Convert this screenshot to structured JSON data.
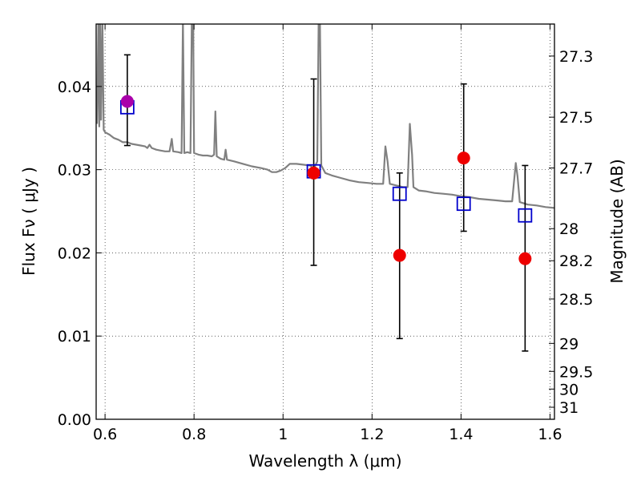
{
  "chart_data": {
    "type": "scatter",
    "title": "",
    "xlabel": "Wavelength  λ (μm)",
    "ylabel": "Flux  Fν  ( μJy )",
    "ylabel_right": "Magnitude (AB)",
    "xlim": [
      0.58,
      1.61
    ],
    "ylim": [
      0.0,
      0.0475
    ],
    "grid": true,
    "x_ticks": [
      {
        "value": 0.6,
        "label": "0.6"
      },
      {
        "value": 0.8,
        "label": "0.8"
      },
      {
        "value": 1.0,
        "label": "1"
      },
      {
        "value": 1.2,
        "label": "1.2"
      },
      {
        "value": 1.4,
        "label": "1.4"
      },
      {
        "value": 1.6,
        "label": "1.6"
      }
    ],
    "y_ticks": [
      {
        "value": 0.0,
        "label": "0.00"
      },
      {
        "value": 0.01,
        "label": "0.01"
      },
      {
        "value": 0.02,
        "label": "0.02"
      },
      {
        "value": 0.03,
        "label": "0.03"
      },
      {
        "value": 0.04,
        "label": "0.04"
      }
    ],
    "right_ticks": [
      {
        "value": 27.3,
        "label": "27.3"
      },
      {
        "value": 27.5,
        "label": "27.5"
      },
      {
        "value": 27.7,
        "label": "27.7"
      },
      {
        "value": 28.0,
        "label": "28"
      },
      {
        "value": 28.2,
        "label": "28.2"
      },
      {
        "value": 28.5,
        "label": "28.5"
      },
      {
        "value": 29.0,
        "label": "29"
      },
      {
        "value": 29.5,
        "label": "29.5"
      },
      {
        "value": 30.0,
        "label": "30"
      },
      {
        "value": 31.0,
        "label": "31"
      }
    ],
    "model_spectrum": {
      "color": "#808080",
      "points": [
        [
          0.582,
          0.0355
        ],
        [
          0.585,
          0.048
        ],
        [
          0.587,
          0.0352
        ],
        [
          0.589,
          0.048
        ],
        [
          0.591,
          0.036
        ],
        [
          0.594,
          0.048
        ],
        [
          0.597,
          0.0348
        ],
        [
          0.6,
          0.0345
        ],
        [
          0.61,
          0.0342
        ],
        [
          0.62,
          0.0338
        ],
        [
          0.63,
          0.0336
        ],
        [
          0.64,
          0.0333
        ],
        [
          0.65,
          0.0333
        ],
        [
          0.66,
          0.0331
        ],
        [
          0.67,
          0.033
        ],
        [
          0.68,
          0.0329
        ],
        [
          0.69,
          0.0328
        ],
        [
          0.695,
          0.0326
        ],
        [
          0.7,
          0.033
        ],
        [
          0.705,
          0.0326
        ],
        [
          0.715,
          0.0324
        ],
        [
          0.725,
          0.0323
        ],
        [
          0.735,
          0.0322
        ],
        [
          0.745,
          0.0322
        ],
        [
          0.75,
          0.0337
        ],
        [
          0.753,
          0.0322
        ],
        [
          0.765,
          0.0321
        ],
        [
          0.772,
          0.032
        ],
        [
          0.775,
          0.048
        ],
        [
          0.778,
          0.032
        ],
        [
          0.785,
          0.0321
        ],
        [
          0.792,
          0.032
        ],
        [
          0.795,
          0.048
        ],
        [
          0.798,
          0.048
        ],
        [
          0.8,
          0.032
        ],
        [
          0.81,
          0.0318
        ],
        [
          0.82,
          0.0317
        ],
        [
          0.83,
          0.0317
        ],
        [
          0.84,
          0.0316
        ],
        [
          0.845,
          0.0318
        ],
        [
          0.848,
          0.037
        ],
        [
          0.851,
          0.0316
        ],
        [
          0.86,
          0.0313
        ],
        [
          0.868,
          0.0312
        ],
        [
          0.871,
          0.0324
        ],
        [
          0.874,
          0.0312
        ],
        [
          0.89,
          0.031
        ],
        [
          0.91,
          0.0307
        ],
        [
          0.93,
          0.0304
        ],
        [
          0.95,
          0.0302
        ],
        [
          0.965,
          0.03
        ],
        [
          0.975,
          0.0297
        ],
        [
          0.985,
          0.0297
        ],
        [
          0.995,
          0.0299
        ],
        [
          1.005,
          0.0302
        ],
        [
          1.015,
          0.0307
        ],
        [
          1.03,
          0.0307
        ],
        [
          1.045,
          0.0306
        ],
        [
          1.06,
          0.0305
        ],
        [
          1.07,
          0.0302
        ],
        [
          1.077,
          0.031
        ],
        [
          1.08,
          0.048
        ],
        [
          1.083,
          0.048
        ],
        [
          1.086,
          0.0305
        ],
        [
          1.095,
          0.0296
        ],
        [
          1.11,
          0.0293
        ],
        [
          1.13,
          0.029
        ],
        [
          1.15,
          0.0287
        ],
        [
          1.17,
          0.0285
        ],
        [
          1.19,
          0.0284
        ],
        [
          1.21,
          0.0283
        ],
        [
          1.225,
          0.0283
        ],
        [
          1.23,
          0.0328
        ],
        [
          1.235,
          0.031
        ],
        [
          1.24,
          0.0283
        ],
        [
          1.255,
          0.0281
        ],
        [
          1.27,
          0.0279
        ],
        [
          1.28,
          0.0279
        ],
        [
          1.285,
          0.0355
        ],
        [
          1.29,
          0.0318
        ],
        [
          1.293,
          0.0279
        ],
        [
          1.305,
          0.0275
        ],
        [
          1.32,
          0.0274
        ],
        [
          1.34,
          0.0272
        ],
        [
          1.36,
          0.0271
        ],
        [
          1.38,
          0.027
        ],
        [
          1.4,
          0.0268
        ],
        [
          1.42,
          0.0267
        ],
        [
          1.44,
          0.0265
        ],
        [
          1.46,
          0.0264
        ],
        [
          1.48,
          0.0263
        ],
        [
          1.5,
          0.0262
        ],
        [
          1.515,
          0.0262
        ],
        [
          1.523,
          0.0308
        ],
        [
          1.527,
          0.0292
        ],
        [
          1.532,
          0.0261
        ],
        [
          1.55,
          0.0258
        ],
        [
          1.57,
          0.0257
        ],
        [
          1.59,
          0.0255
        ],
        [
          1.61,
          0.0254
        ]
      ]
    },
    "model_photometry": {
      "marker": "open-square",
      "color": "#0000cc",
      "points": [
        {
          "x": 0.65,
          "y": 0.0375
        },
        {
          "x": 1.069,
          "y": 0.0298
        },
        {
          "x": 1.262,
          "y": 0.0271
        },
        {
          "x": 1.406,
          "y": 0.0259
        },
        {
          "x": 1.544,
          "y": 0.0245
        }
      ]
    },
    "observed_photometry": {
      "marker": "filled-circle",
      "color": "#ee0000",
      "points": [
        {
          "x": 0.65,
          "y": 0.0382,
          "yerr_low": 0.0329,
          "yerr_high": 0.0438,
          "color": "#aa00aa"
        },
        {
          "x": 1.069,
          "y": 0.0296,
          "yerr_low": 0.0185,
          "yerr_high": 0.0409
        },
        {
          "x": 1.262,
          "y": 0.0197,
          "yerr_low": 0.0097,
          "yerr_high": 0.0296
        },
        {
          "x": 1.406,
          "y": 0.0314,
          "yerr_low": 0.0226,
          "yerr_high": 0.0403
        },
        {
          "x": 1.544,
          "y": 0.0193,
          "yerr_low": 0.0082,
          "yerr_high": 0.0305
        }
      ]
    }
  }
}
